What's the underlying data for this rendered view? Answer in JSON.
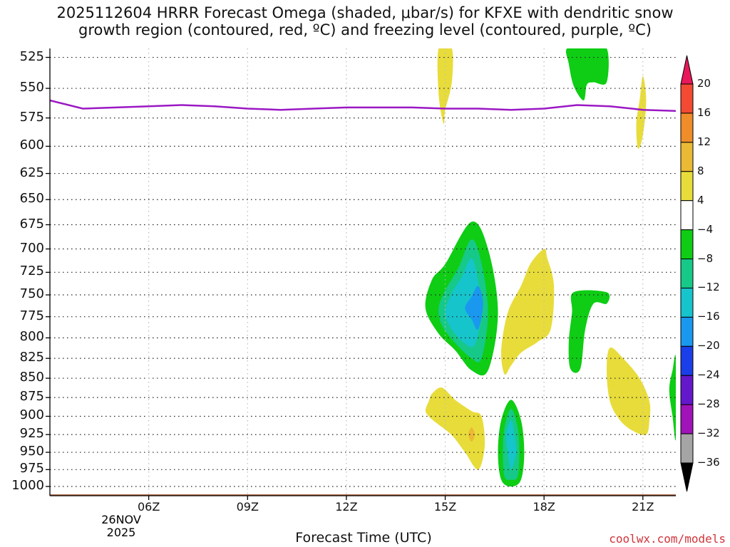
{
  "chart_data": {
    "type": "heatmap",
    "title_line1": "2025112604 HRRR Forecast Omega (shaded, μbar/s) for KFXE with dendritic snow",
    "title_line2": "growth region (contoured, red, ºC) and freezing level (contoured, purple, ºC)",
    "xlabel": "Forecast Time (UTC)",
    "x_ticks": [
      "06Z",
      "09Z",
      "12Z",
      "15Z",
      "18Z",
      "21Z"
    ],
    "x_tick_hours": [
      6,
      9,
      12,
      15,
      18,
      21
    ],
    "date_day": "26NOV",
    "date_year": "2025",
    "xlim_hours": [
      3,
      22
    ],
    "y_ticks": [
      525,
      550,
      575,
      600,
      625,
      650,
      675,
      700,
      725,
      750,
      775,
      800,
      825,
      850,
      875,
      900,
      925,
      950,
      975,
      1000
    ],
    "ylabel": "",
    "y_scale": "log-pressure",
    "ylim_hpa": [
      1014,
      518
    ],
    "grid": true,
    "colorbar": {
      "labels": [
        "20",
        "16",
        "12",
        "8",
        "4",
        "−4",
        "−8",
        "−12",
        "−16",
        "−20",
        "−24",
        "−28",
        "−32",
        "−36"
      ],
      "colors": [
        "#e8185a",
        "#f24a33",
        "#ef8d2a",
        "#ebba35",
        "#e8dc3b",
        "#ffffff",
        "#0ecd14",
        "#16c988",
        "#16c4cc",
        "#1a98ef",
        "#1a3ee8",
        "#6318cc",
        "#a013b9",
        "#a5a5a5",
        "#000000"
      ]
    },
    "freezing_level": {
      "name": "freezing level",
      "color": "#9b18c4",
      "x": [
        3,
        4,
        5,
        6,
        7,
        8,
        9,
        10,
        11,
        12,
        13,
        14,
        15,
        16,
        17,
        18,
        19,
        20,
        21,
        22
      ],
      "y": [
        560,
        567,
        566,
        565,
        564,
        565,
        567,
        568,
        567,
        566,
        566,
        566,
        567,
        567,
        568,
        567,
        564,
        565,
        568,
        569
      ]
    },
    "omega_regions": [
      {
        "value": "-4",
        "color": "#0ecd14",
        "x": [
          15.8,
          16.3,
          16.6,
          16.3,
          15.8,
          15.3,
          14.8,
          14.4,
          14.6,
          15.0
        ],
        "y": [
          672,
          700,
          770,
          840,
          840,
          815,
          795,
          765,
          733,
          716
        ]
      },
      {
        "value": "-8",
        "color": "#16c988",
        "x": [
          15.8,
          16.1,
          16.3,
          16.1,
          15.8,
          15.3,
          14.9,
          14.8,
          15.0,
          15.4
        ],
        "y": [
          690,
          715,
          770,
          825,
          825,
          806,
          785,
          765,
          745,
          720
        ]
      },
      {
        "value": "-12",
        "color": "#16c4cc",
        "x": [
          15.8,
          16.0,
          16.1,
          15.9,
          15.6,
          15.2,
          15.0,
          15.2,
          15.5
        ],
        "y": [
          710,
          735,
          770,
          808,
          807,
          790,
          770,
          748,
          730
        ]
      },
      {
        "value": "-16",
        "color": "#1a98ef",
        "x": [
          16.0,
          16.15,
          16.0,
          15.8,
          15.6,
          15.8
        ],
        "y": [
          740,
          760,
          790,
          778,
          765,
          752
        ]
      },
      {
        "value": "-4",
        "color": "#0ecd14",
        "x": [
          17.0,
          17.3,
          17.4,
          17.3,
          17.0,
          16.7,
          16.6,
          16.7
        ],
        "y": [
          878,
          905,
          950,
          990,
          1000,
          990,
          950,
          905
        ]
      },
      {
        "value": "-8",
        "color": "#16c988",
        "x": [
          17.0,
          17.2,
          17.25,
          17.2,
          17.0,
          16.8,
          16.75,
          16.8
        ],
        "y": [
          890,
          915,
          950,
          985,
          990,
          985,
          950,
          915
        ]
      },
      {
        "value": "-12",
        "color": "#16c4cc",
        "x": [
          17.0,
          17.1,
          17.15,
          17.0,
          16.9,
          16.85
        ],
        "y": [
          905,
          925,
          950,
          975,
          950,
          925
        ]
      },
      {
        "value": "-4",
        "color": "#0ecd14",
        "x": [
          18.7,
          19.3,
          19.9,
          19.9,
          19.5,
          19.3,
          19.2,
          18.9,
          18.75
        ],
        "y": [
          518,
          518,
          518,
          545,
          545,
          547,
          560,
          548,
          530
        ]
      },
      {
        "value": "-4",
        "color": "#0ecd14",
        "x": [
          18.9,
          19.9,
          19.9,
          19.5,
          19.25,
          19.1,
          18.8,
          18.75,
          18.85
        ],
        "y": [
          747,
          747,
          760,
          760,
          790,
          838,
          838,
          805,
          770
        ]
      },
      {
        "value": "-4",
        "color": "#0ecd14",
        "x": [
          22.0,
          21.9,
          21.8,
          21.9,
          22.0
        ],
        "y": [
          825,
          840,
          865,
          900,
          930
        ]
      },
      {
        "value": "4",
        "color": "#e8dc3b",
        "x": [
          14.8,
          15.2,
          15.2,
          15.0,
          14.95,
          14.8
        ],
        "y": [
          518,
          518,
          545,
          568,
          580,
          555
        ]
      },
      {
        "value": "4",
        "color": "#e8dc3b",
        "x": [
          18.0,
          18.1,
          18.3,
          18.2,
          17.8,
          17.3,
          17.0,
          16.8,
          16.7,
          16.9,
          17.3,
          17.6
        ],
        "y": [
          700,
          710,
          740,
          790,
          805,
          818,
          834,
          845,
          815,
          770,
          740,
          715
        ]
      },
      {
        "value": "4",
        "color": "#e8dc3b",
        "x": [
          20.0,
          20.4,
          20.9,
          21.2,
          21.2,
          21.1,
          20.7,
          20.3,
          20.0,
          19.9
        ],
        "y": [
          812,
          825,
          850,
          880,
          905,
          925,
          920,
          905,
          880,
          840
        ]
      },
      {
        "value": "4",
        "color": "#e8dc3b",
        "x": [
          21.0,
          21.1,
          21.0,
          20.85,
          20.8,
          20.9
        ],
        "y": [
          540,
          560,
          590,
          602,
          580,
          560
        ]
      },
      {
        "value": "4",
        "color": "#e8dc3b",
        "x": [
          14.6,
          14.9,
          15.3,
          15.8,
          16.1,
          16.2,
          16.0,
          15.6,
          15.2,
          14.7,
          14.5,
          14.4,
          14.5
        ],
        "y": [
          870,
          862,
          878,
          893,
          900,
          940,
          975,
          950,
          926,
          908,
          900,
          892,
          880
        ]
      },
      {
        "value": "8",
        "color": "#ebba35",
        "x": [
          15.8,
          15.9,
          15.8,
          15.7
        ],
        "y": [
          915,
          925,
          935,
          925
        ]
      }
    ],
    "surface_band": {
      "color": "#a65a33",
      "from_hpa": 1012,
      "to_hpa": 1018
    }
  },
  "credit": "coolwx.com/models"
}
